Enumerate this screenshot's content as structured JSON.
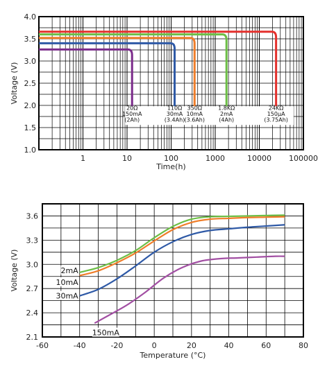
{
  "chart_data": [
    {
      "type": "line",
      "title": "",
      "xlabel": "Time(h)",
      "ylabel": "Voltage (V)",
      "xscale": "log",
      "xlim": [
        0.1,
        100000
      ],
      "ylim": [
        1.0,
        4.0
      ],
      "grid": true,
      "legend": "none",
      "x_ticks": [
        "1",
        "10",
        "100",
        "1000",
        "10000",
        "100000"
      ],
      "y_ticks": [
        "1.0",
        "1.5",
        "2.0",
        "2.5",
        "3.0",
        "3.5",
        "4.0"
      ],
      "series": [
        {
          "color": "#7b2c8b",
          "plateau_v": 3.26,
          "end_h": 13,
          "label_lines": [
            "20Ω",
            "150mA",
            "(2Ah)"
          ],
          "label_at_h": 13
        },
        {
          "color": "#2e59a6",
          "plateau_v": 3.4,
          "end_h": 120,
          "label_lines": [
            "110Ω",
            "30mA",
            "(3.4Ah)"
          ],
          "label_at_h": 120
        },
        {
          "color": "#ef7d29",
          "plateau_v": 3.52,
          "end_h": 340,
          "label_lines": [
            "350Ω",
            "10mA",
            "(3.6Ah)"
          ],
          "label_at_h": 340
        },
        {
          "color": "#6cbe45",
          "plateau_v": 3.6,
          "end_h": 1800,
          "label_lines": [
            "1.8KΩ",
            "2mA",
            "(4Ah)"
          ],
          "label_at_h": 1800
        },
        {
          "color": "#e4302c",
          "plateau_v": 3.66,
          "end_h": 24000,
          "label_lines": [
            "24KΩ",
            "150µA",
            "(3.75Ah)"
          ],
          "label_at_h": 24000
        }
      ]
    },
    {
      "type": "line",
      "title": "",
      "xlabel": "Temperature (°C)",
      "ylabel": "Voltage (V)",
      "xlim": [
        -60,
        80
      ],
      "ylim": [
        2.1,
        3.75
      ],
      "grid": true,
      "legend": "inline labels",
      "x_ticks": [
        "-60",
        "-40",
        "-20",
        "0",
        "20",
        "40",
        "60",
        "80"
      ],
      "y_ticks": [
        "2.1",
        "2.4",
        "2.7",
        "3.0",
        "3.3",
        "3.6"
      ],
      "series": [
        {
          "name": "2mA",
          "color": "#6cbe45",
          "x": [
            -40,
            -30,
            -20,
            -10,
            0,
            10,
            20,
            30,
            40,
            50,
            60,
            70
          ],
          "y": [
            2.9,
            2.96,
            3.05,
            3.17,
            3.33,
            3.47,
            3.56,
            3.59,
            3.595,
            3.6,
            3.605,
            3.61
          ]
        },
        {
          "name": "10mA",
          "color": "#ef7d29",
          "x": [
            -40,
            -30,
            -20,
            -10,
            0,
            10,
            20,
            30,
            40,
            50,
            60,
            70
          ],
          "y": [
            2.86,
            2.92,
            3.02,
            3.14,
            3.29,
            3.43,
            3.52,
            3.56,
            3.57,
            3.58,
            3.585,
            3.59
          ]
        },
        {
          "name": "30mA",
          "color": "#2e59a6",
          "x": [
            -40,
            -30,
            -20,
            -10,
            0,
            10,
            20,
            30,
            40,
            50,
            60,
            70
          ],
          "y": [
            2.61,
            2.69,
            2.82,
            2.98,
            3.15,
            3.28,
            3.37,
            3.42,
            3.44,
            3.46,
            3.475,
            3.49
          ]
        },
        {
          "name": "150mA",
          "color": "#a24fa3",
          "x": [
            -32,
            -25,
            -15,
            -5,
            5,
            15,
            25,
            35,
            45,
            55,
            65,
            70
          ],
          "y": [
            2.27,
            2.36,
            2.49,
            2.65,
            2.83,
            2.96,
            3.04,
            3.07,
            3.08,
            3.09,
            3.1,
            3.1
          ]
        }
      ]
    }
  ]
}
